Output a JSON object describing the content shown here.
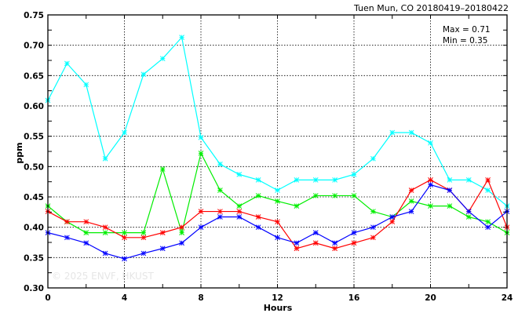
{
  "chart_data": {
    "type": "line",
    "title": "Tuen Mun, CO 20180419–20180422",
    "xlabel": "Hours",
    "ylabel": "ppm",
    "xlim": [
      0,
      24
    ],
    "ylim": [
      0.3,
      0.75
    ],
    "xticks": [
      0,
      4,
      8,
      12,
      16,
      20,
      24
    ],
    "yticks": [
      "0.30",
      "0.35",
      "0.40",
      "0.45",
      "0.50",
      "0.55",
      "0.60",
      "0.65",
      "0.70",
      "0.75"
    ],
    "grid": true,
    "annotations": {
      "max": "Max = 0.71",
      "min": "Min = 0.35"
    },
    "watermark": "© 2025  ENVF, HKUST",
    "x": [
      0,
      1,
      2,
      3,
      4,
      5,
      6,
      7,
      8,
      9,
      10,
      11,
      12,
      13,
      14,
      15,
      16,
      17,
      18,
      19,
      20,
      21,
      22,
      23,
      24
    ],
    "series": [
      {
        "color": "#00ffff",
        "values": [
          0.609,
          0.67,
          0.635,
          0.513,
          0.556,
          0.652,
          0.678,
          0.713,
          0.548,
          0.504,
          0.487,
          0.478,
          0.461,
          0.478,
          0.478,
          0.478,
          0.487,
          0.513,
          0.556,
          0.556,
          0.539,
          0.478,
          0.478,
          0.461,
          0.435
        ]
      },
      {
        "color": "#00ee00",
        "values": [
          0.435,
          0.409,
          0.391,
          0.391,
          0.391,
          0.391,
          0.496,
          0.391,
          0.522,
          0.461,
          0.435,
          0.452,
          0.443,
          0.435,
          0.452,
          0.452,
          0.452,
          0.426,
          0.417,
          0.443,
          0.435,
          0.435,
          0.417,
          0.409,
          0.391
        ]
      },
      {
        "color": "#ff0000",
        "values": [
          0.426,
          0.409,
          0.409,
          0.4,
          0.383,
          0.383,
          0.391,
          0.4,
          0.426,
          0.426,
          0.426,
          0.417,
          0.409,
          0.365,
          0.374,
          0.365,
          0.374,
          0.383,
          0.409,
          0.461,
          0.478,
          0.461,
          0.426,
          0.478,
          0.4
        ]
      },
      {
        "color": "#0000ff",
        "values": [
          0.391,
          0.383,
          0.374,
          0.357,
          0.348,
          0.357,
          0.365,
          0.374,
          0.4,
          0.417,
          0.417,
          0.4,
          0.383,
          0.374,
          0.391,
          0.374,
          0.391,
          0.4,
          0.417,
          0.426,
          0.47,
          0.461,
          0.426,
          0.4,
          0.426
        ]
      }
    ]
  }
}
